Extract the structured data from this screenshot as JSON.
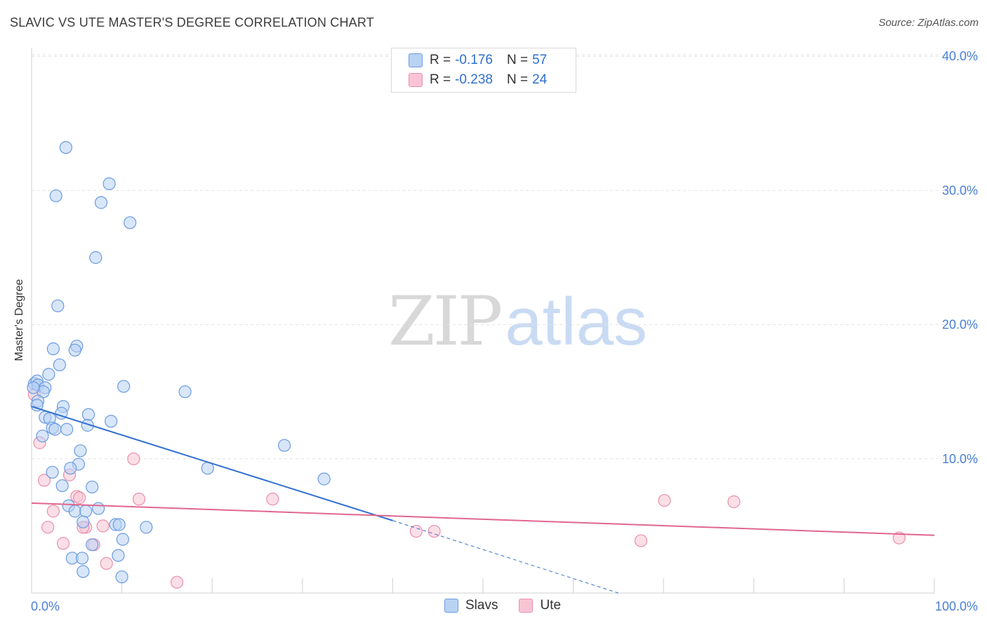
{
  "title": "SLAVIC VS UTE MASTER'S DEGREE CORRELATION CHART",
  "source": "Source: ZipAtlas.com",
  "watermark": {
    "zip": "ZIP",
    "atlas": "atlas"
  },
  "legend": {
    "rows": [
      {
        "r_label": "R =",
        "r_value": "-0.176",
        "n_label": "N =",
        "n_value": "57"
      },
      {
        "r_label": "R =",
        "r_value": "-0.238",
        "n_label": "N =",
        "n_value": "24"
      }
    ]
  },
  "bottom_legend": {
    "slavs": "Slavs",
    "ute": "Ute"
  },
  "colors": {
    "slavs_fill": "#b8d2f4",
    "slavs_stroke": "#6b9be0",
    "slavs_line": "#2f6fd0",
    "ute_fill": "#f8c4d4",
    "ute_stroke": "#e890ad",
    "ute_line": "#e0678f",
    "grid": "#e2e2e2",
    "tick_text": "#4a7fd6"
  },
  "chart_data": {
    "type": "scatter",
    "title": "SLAVIC VS UTE MASTER'S DEGREE CORRELATION CHART",
    "xlabel": "",
    "ylabel": "Master's Degree",
    "xlim": [
      0,
      100
    ],
    "ylim": [
      0,
      40
    ],
    "x_tick_labels": [
      "0.0%",
      "100.0%"
    ],
    "y_ticks": [
      10,
      20,
      30,
      40
    ],
    "y_tick_labels": [
      "10.0%",
      "20.0%",
      "30.0%",
      "40.0%"
    ],
    "grid": true,
    "legend_position": "top-center",
    "series": [
      {
        "name": "Slavs",
        "points": [
          [
            3.8,
            33.2
          ],
          [
            8.6,
            30.5
          ],
          [
            2.7,
            29.6
          ],
          [
            7.7,
            29.1
          ],
          [
            10.9,
            27.6
          ],
          [
            7.1,
            25.0
          ],
          [
            2.9,
            21.4
          ],
          [
            2.4,
            18.2
          ],
          [
            5.0,
            18.4
          ],
          [
            4.8,
            18.1
          ],
          [
            3.1,
            17.0
          ],
          [
            1.9,
            16.3
          ],
          [
            0.3,
            15.6
          ],
          [
            0.6,
            15.8
          ],
          [
            0.7,
            15.5
          ],
          [
            1.5,
            15.3
          ],
          [
            1.3,
            15.0
          ],
          [
            10.2,
            15.4
          ],
          [
            17.0,
            15.0
          ],
          [
            0.7,
            14.3
          ],
          [
            0.6,
            14.0
          ],
          [
            3.5,
            13.9
          ],
          [
            6.3,
            13.3
          ],
          [
            3.3,
            13.4
          ],
          [
            1.5,
            13.1
          ],
          [
            2.0,
            13.0
          ],
          [
            8.8,
            12.8
          ],
          [
            6.2,
            12.5
          ],
          [
            2.3,
            12.3
          ],
          [
            2.6,
            12.2
          ],
          [
            3.9,
            12.2
          ],
          [
            1.2,
            11.7
          ],
          [
            28.0,
            11.0
          ],
          [
            5.4,
            10.6
          ],
          [
            5.2,
            9.6
          ],
          [
            2.3,
            9.0
          ],
          [
            4.3,
            9.3
          ],
          [
            19.5,
            9.3
          ],
          [
            32.4,
            8.5
          ],
          [
            3.4,
            8.0
          ],
          [
            6.7,
            7.9
          ],
          [
            4.1,
            6.5
          ],
          [
            7.4,
            6.3
          ],
          [
            4.8,
            6.1
          ],
          [
            6.0,
            6.1
          ],
          [
            5.7,
            5.3
          ],
          [
            9.3,
            5.1
          ],
          [
            9.7,
            5.1
          ],
          [
            12.7,
            4.9
          ],
          [
            10.1,
            4.0
          ],
          [
            6.7,
            3.6
          ],
          [
            9.6,
            2.8
          ],
          [
            4.5,
            2.6
          ],
          [
            5.6,
            2.6
          ],
          [
            5.7,
            1.6
          ],
          [
            10.0,
            1.2
          ],
          [
            0.2,
            15.3
          ]
        ],
        "trend": {
          "x": [
            0,
            40
          ],
          "y": [
            13.9,
            5.4
          ],
          "dashed_to": [
            65,
            0
          ]
        }
      },
      {
        "name": "Ute",
        "points": [
          [
            0.3,
            14.8
          ],
          [
            0.9,
            11.2
          ],
          [
            11.3,
            10.0
          ],
          [
            1.4,
            8.4
          ],
          [
            4.2,
            8.8
          ],
          [
            5.0,
            7.2
          ],
          [
            5.3,
            7.1
          ],
          [
            11.9,
            7.0
          ],
          [
            26.7,
            7.0
          ],
          [
            70.1,
            6.9
          ],
          [
            77.8,
            6.8
          ],
          [
            2.4,
            6.1
          ],
          [
            1.8,
            4.9
          ],
          [
            6.0,
            4.9
          ],
          [
            7.9,
            5.0
          ],
          [
            5.7,
            4.9
          ],
          [
            42.6,
            4.6
          ],
          [
            44.6,
            4.6
          ],
          [
            67.5,
            3.9
          ],
          [
            96.1,
            4.1
          ],
          [
            3.5,
            3.7
          ],
          [
            6.9,
            3.6
          ],
          [
            8.3,
            2.2
          ],
          [
            16.1,
            0.8
          ]
        ],
        "trend": {
          "x": [
            0,
            100
          ],
          "y": [
            6.7,
            4.3
          ]
        }
      }
    ]
  }
}
